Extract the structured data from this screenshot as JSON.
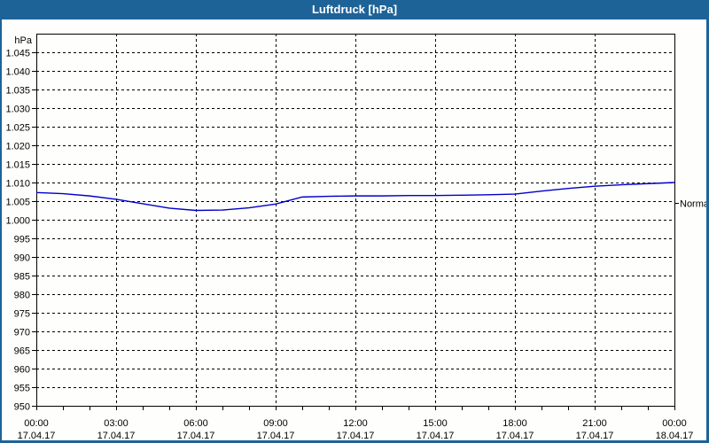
{
  "window": {
    "title": "Luftdruck [hPa]",
    "titlebar_color": "#1E6398",
    "border_color": "#1E6398",
    "background_color": "#FEFEFC"
  },
  "chart_data": {
    "type": "line",
    "title": "Luftdruck [hPa]",
    "grid": {
      "style": "dashed",
      "color": "#000000",
      "visible": true
    },
    "frame_color": "#000000",
    "y_axis": {
      "unit_label": "hPa",
      "min": 950,
      "max": 1050,
      "tick_step": 5,
      "tick_values": [
        1045,
        1040,
        1035,
        1030,
        1025,
        1020,
        1015,
        1010,
        1005,
        1000,
        995,
        990,
        985,
        980,
        975,
        970,
        965,
        960,
        955,
        950
      ],
      "tick_labels": [
        "1.045",
        "1.040",
        "1.035",
        "1.030",
        "1.025",
        "1.020",
        "1.015",
        "1.010",
        "1.005",
        "1.000",
        "995",
        "990",
        "985",
        "980",
        "975",
        "970",
        "965",
        "960",
        "955",
        "950"
      ]
    },
    "x_axis": {
      "hours_span": 24,
      "minor_tick_every_hours": 1,
      "major_tick_every_hours": 3,
      "ticks": [
        {
          "time": "00:00",
          "date": "17.04.17"
        },
        {
          "time": "03:00",
          "date": "17.04.17"
        },
        {
          "time": "06:00",
          "date": "17.04.17"
        },
        {
          "time": "09:00",
          "date": "17.04.17"
        },
        {
          "time": "12:00",
          "date": "17.04.17"
        },
        {
          "time": "15:00",
          "date": "17.04.17"
        },
        {
          "time": "18:00",
          "date": "17.04.17"
        },
        {
          "time": "21:00",
          "date": "17.04.17"
        },
        {
          "time": "00:00",
          "date": "18.04.17"
        }
      ]
    },
    "series": [
      {
        "name": "Luftdruck",
        "color": "#0000CC",
        "x_hours": [
          0,
          1,
          2,
          3,
          4,
          5,
          6,
          7,
          8,
          9,
          10,
          11,
          12,
          13,
          14,
          15,
          16,
          17,
          18,
          19,
          20,
          21,
          22,
          23,
          24
        ],
        "values": [
          1007.3,
          1007.0,
          1006.4,
          1005.5,
          1004.3,
          1003.1,
          1002.5,
          1002.6,
          1003.2,
          1004.2,
          1006.1,
          1006.3,
          1006.4,
          1006.4,
          1006.5,
          1006.5,
          1006.6,
          1006.7,
          1006.9,
          1007.7,
          1008.4,
          1009.0,
          1009.4,
          1009.7,
          1010.0
        ]
      }
    ],
    "marker": {
      "label": "Normal",
      "value": 1004.5
    }
  }
}
